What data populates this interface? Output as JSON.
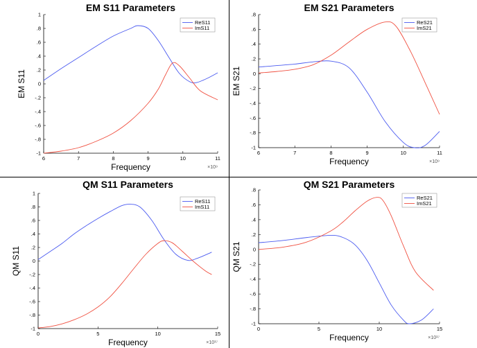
{
  "figure": {
    "background": "#ffffff",
    "colors": {
      "re": "#4a5af0",
      "im": "#f05040",
      "axis": "#000000"
    }
  },
  "chart_data": [
    {
      "id": "em-s11",
      "type": "line",
      "title": "EM S11 Parameters",
      "xlabel": "Frequency",
      "ylabel": "EM S11",
      "xlim": [
        6,
        11
      ],
      "ylim": [
        -1,
        1
      ],
      "xticks": [
        6,
        7,
        8,
        9,
        10,
        11
      ],
      "yticks": [
        -1,
        -0.8,
        -0.6,
        -0.4,
        -0.2,
        0,
        0.2,
        0.4,
        0.6,
        0.8,
        1
      ],
      "x_exponent": "×10⁹",
      "legend": "top-right",
      "grid": false,
      "series": [
        {
          "name": "ReS11",
          "color": "#4a5af0",
          "points": [
            [
              6,
              0.05
            ],
            [
              6.5,
              0.22
            ],
            [
              7,
              0.38
            ],
            [
              7.5,
              0.54
            ],
            [
              8,
              0.69
            ],
            [
              8.5,
              0.8
            ],
            [
              8.7,
              0.84
            ],
            [
              9,
              0.8
            ],
            [
              9.3,
              0.62
            ],
            [
              9.6,
              0.38
            ],
            [
              9.9,
              0.15
            ],
            [
              10.2,
              0.03
            ],
            [
              10.4,
              0.02
            ],
            [
              10.7,
              0.08
            ],
            [
              11,
              0.16
            ]
          ]
        },
        {
          "name": "ImS11",
          "color": "#f05040",
          "points": [
            [
              6,
              -1
            ],
            [
              6.5,
              -0.97
            ],
            [
              7,
              -0.92
            ],
            [
              7.5,
              -0.83
            ],
            [
              8,
              -0.71
            ],
            [
              8.5,
              -0.53
            ],
            [
              9,
              -0.28
            ],
            [
              9.3,
              -0.07
            ],
            [
              9.5,
              0.13
            ],
            [
              9.7,
              0.3
            ],
            [
              9.9,
              0.26
            ],
            [
              10.2,
              0.08
            ],
            [
              10.5,
              -0.1
            ],
            [
              11,
              -0.23
            ]
          ]
        }
      ]
    },
    {
      "id": "em-s21",
      "type": "line",
      "title": "EM S21 Parameters",
      "xlabel": "Frequency",
      "ylabel": "EM S21",
      "xlim": [
        6,
        11
      ],
      "ylim": [
        -1,
        0.8
      ],
      "xticks": [
        6,
        7,
        8,
        9,
        10,
        11
      ],
      "yticks": [
        -1,
        -0.8,
        -0.6,
        -0.4,
        -0.2,
        0,
        0.2,
        0.4,
        0.6,
        0.8
      ],
      "x_exponent": "×10⁹",
      "legend": "top-right",
      "grid": false,
      "series": [
        {
          "name": "ReS21",
          "color": "#4a5af0",
          "points": [
            [
              6,
              0.09
            ],
            [
              6.5,
              0.11
            ],
            [
              7,
              0.13
            ],
            [
              7.5,
              0.16
            ],
            [
              8,
              0.17
            ],
            [
              8.5,
              0.08
            ],
            [
              9,
              -0.25
            ],
            [
              9.5,
              -0.65
            ],
            [
              10,
              -0.93
            ],
            [
              10.3,
              -1
            ],
            [
              10.6,
              -0.97
            ],
            [
              11,
              -0.78
            ]
          ]
        },
        {
          "name": "ImS21",
          "color": "#f05040",
          "points": [
            [
              6,
              0.01
            ],
            [
              6.5,
              0.03
            ],
            [
              7,
              0.06
            ],
            [
              7.5,
              0.12
            ],
            [
              8,
              0.25
            ],
            [
              8.5,
              0.43
            ],
            [
              9,
              0.6
            ],
            [
              9.5,
              0.7
            ],
            [
              9.8,
              0.64
            ],
            [
              10.2,
              0.3
            ],
            [
              10.6,
              -0.12
            ],
            [
              11,
              -0.55
            ]
          ]
        }
      ]
    },
    {
      "id": "qm-s11",
      "type": "line",
      "title": "QM S11 Parameters",
      "xlabel": "Frequency",
      "ylabel": "QM S11",
      "xlim": [
        0,
        15
      ],
      "ylim": [
        -1,
        1
      ],
      "xticks": [
        0,
        5,
        10,
        15
      ],
      "yticks": [
        -1,
        -0.8,
        -0.6,
        -0.4,
        -0.2,
        0,
        0.2,
        0.4,
        0.6,
        0.8,
        1
      ],
      "x_exponent": "×10¹⁷",
      "legend": "top-right",
      "grid": false,
      "series": [
        {
          "name": "ReS11",
          "color": "#4a5af0",
          "points": [
            [
              0,
              0.02
            ],
            [
              1,
              0.14
            ],
            [
              2,
              0.26
            ],
            [
              3,
              0.4
            ],
            [
              4,
              0.52
            ],
            [
              5,
              0.63
            ],
            [
              6,
              0.73
            ],
            [
              7,
              0.82
            ],
            [
              7.7,
              0.84
            ],
            [
              8.5,
              0.8
            ],
            [
              9.5,
              0.6
            ],
            [
              10.5,
              0.32
            ],
            [
              11.5,
              0.1
            ],
            [
              12.5,
              0.01
            ],
            [
              13.3,
              0.04
            ],
            [
              14.5,
              0.13
            ]
          ]
        },
        {
          "name": "ImS11",
          "color": "#f05040",
          "points": [
            [
              0,
              -0.99
            ],
            [
              1,
              -0.97
            ],
            [
              2,
              -0.93
            ],
            [
              3,
              -0.87
            ],
            [
              4,
              -0.79
            ],
            [
              5,
              -0.68
            ],
            [
              6,
              -0.53
            ],
            [
              7,
              -0.33
            ],
            [
              8,
              -0.11
            ],
            [
              9,
              0.1
            ],
            [
              10,
              0.26
            ],
            [
              10.5,
              0.3
            ],
            [
              11.2,
              0.27
            ],
            [
              12,
              0.15
            ],
            [
              13,
              -0.01
            ],
            [
              14,
              -0.15
            ],
            [
              14.5,
              -0.2
            ]
          ]
        }
      ]
    },
    {
      "id": "qm-s21",
      "type": "line",
      "title": "QM S21 Parameters",
      "xlabel": "Frequency",
      "ylabel": "QM S21",
      "xlim": [
        0,
        15
      ],
      "ylim": [
        -1,
        0.8
      ],
      "xticks": [
        0,
        5,
        10,
        15
      ],
      "yticks": [
        -1,
        -0.8,
        -0.6,
        -0.4,
        -0.2,
        0,
        0.2,
        0.4,
        0.6,
        0.8
      ],
      "x_exponent": "×10¹⁷",
      "legend": "top-right",
      "grid": false,
      "series": [
        {
          "name": "ReS21",
          "color": "#4a5af0",
          "points": [
            [
              0,
              0.09
            ],
            [
              2,
              0.12
            ],
            [
              4,
              0.16
            ],
            [
              6,
              0.19
            ],
            [
              7,
              0.16
            ],
            [
              8,
              0.06
            ],
            [
              9,
              -0.15
            ],
            [
              10,
              -0.45
            ],
            [
              11,
              -0.75
            ],
            [
              12,
              -0.95
            ],
            [
              12.5,
              -1
            ],
            [
              13.5,
              -0.95
            ],
            [
              14.5,
              -0.8
            ]
          ]
        },
        {
          "name": "ImS21",
          "color": "#f05040",
          "points": [
            [
              0,
              0
            ],
            [
              2,
              0.03
            ],
            [
              4,
              0.1
            ],
            [
              6,
              0.25
            ],
            [
              7,
              0.37
            ],
            [
              8,
              0.52
            ],
            [
              9,
              0.65
            ],
            [
              9.8,
              0.7
            ],
            [
              10.3,
              0.66
            ],
            [
              11,
              0.45
            ],
            [
              12,
              0.05
            ],
            [
              13,
              -0.3
            ],
            [
              14.5,
              -0.55
            ]
          ]
        }
      ]
    }
  ]
}
